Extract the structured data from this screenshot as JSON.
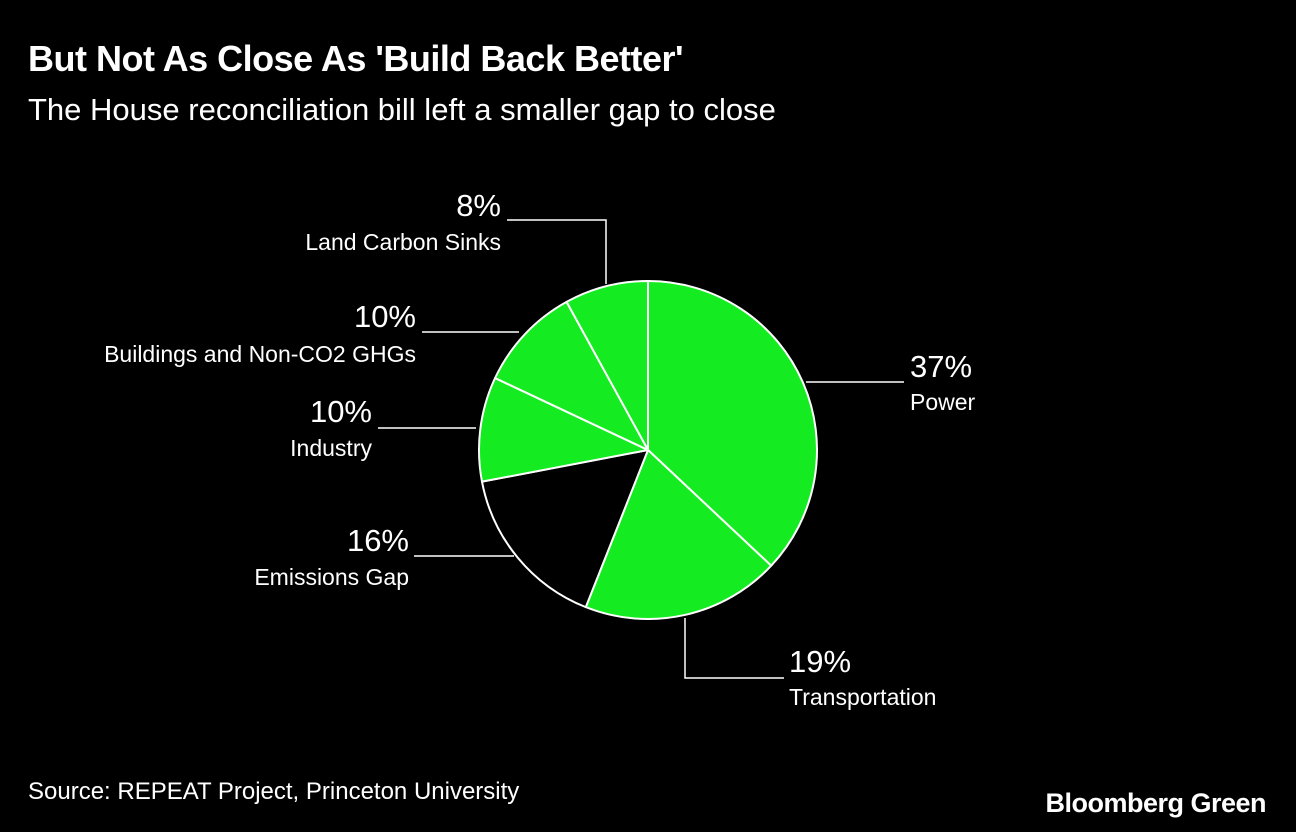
{
  "header": {
    "title": "But Not As Close As 'Build Back Better'",
    "subtitle": "The House reconciliation bill left a smaller gap to close"
  },
  "footer": {
    "source": "Source: REPEAT Project, Princeton University",
    "brand": "Bloomberg Green"
  },
  "colors": {
    "background": "#000000",
    "accent": "#14ec21",
    "gap": "#000000",
    "stroke": "#ffffff"
  },
  "chart_data": {
    "type": "pie",
    "title": "But Not As Close As 'Build Back Better'",
    "subtitle": "The House reconciliation bill left a smaller gap to close",
    "start": "12 o'clock",
    "direction": "clockwise",
    "slices": [
      {
        "label": "Power",
        "value": 37,
        "display": "37%",
        "color": "#14ec21"
      },
      {
        "label": "Transportation",
        "value": 19,
        "display": "19%",
        "color": "#14ec21"
      },
      {
        "label": "Emissions Gap",
        "value": 16,
        "display": "16%",
        "color": "#000000"
      },
      {
        "label": "Industry",
        "value": 10,
        "display": "10%",
        "color": "#14ec21"
      },
      {
        "label": "Buildings and Non-CO2 GHGs",
        "value": 10,
        "display": "10%",
        "color": "#14ec21"
      },
      {
        "label": "Land Carbon Sinks",
        "value": 8,
        "display": "8%",
        "color": "#14ec21"
      }
    ]
  }
}
